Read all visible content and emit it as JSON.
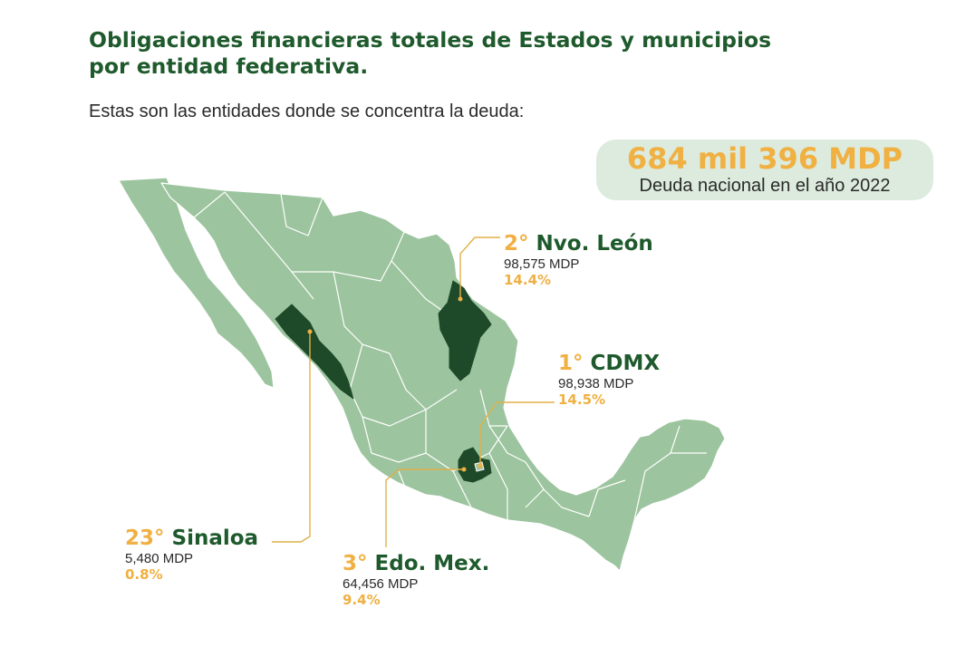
{
  "title_lines": [
    "Obligaciones financieras totales de Estados y municipios",
    "por entidad federativa."
  ],
  "subtitle": "Estas son las entidades donde se concentra la deuda:",
  "total": {
    "amount": "684 mil 396 MDP",
    "label": "Deuda nacional en el año 2022"
  },
  "callouts": {
    "nuevo_leon": {
      "rank": "2°",
      "name": "Nvo. León",
      "amount": "98,575 MDP",
      "percent": "14.4%"
    },
    "cdmx": {
      "rank": "1°",
      "name": "CDMX",
      "amount": "98,938 MDP",
      "percent": "14.5%"
    },
    "sinaloa": {
      "rank": "23°",
      "name": "Sinaloa",
      "amount": "5,480 MDP",
      "percent": "0.8%"
    },
    "edomex": {
      "rank": "3°",
      "name": "Edo. Mex.",
      "amount": "64,456 MDP",
      "percent": "9.4%"
    }
  },
  "colors": {
    "land": "#9cc49e",
    "border": "#ffffff",
    "highlight": "#1f4a2a",
    "accent": "#f0b042",
    "title": "#1e5a2c",
    "box": "#dcebdd"
  }
}
